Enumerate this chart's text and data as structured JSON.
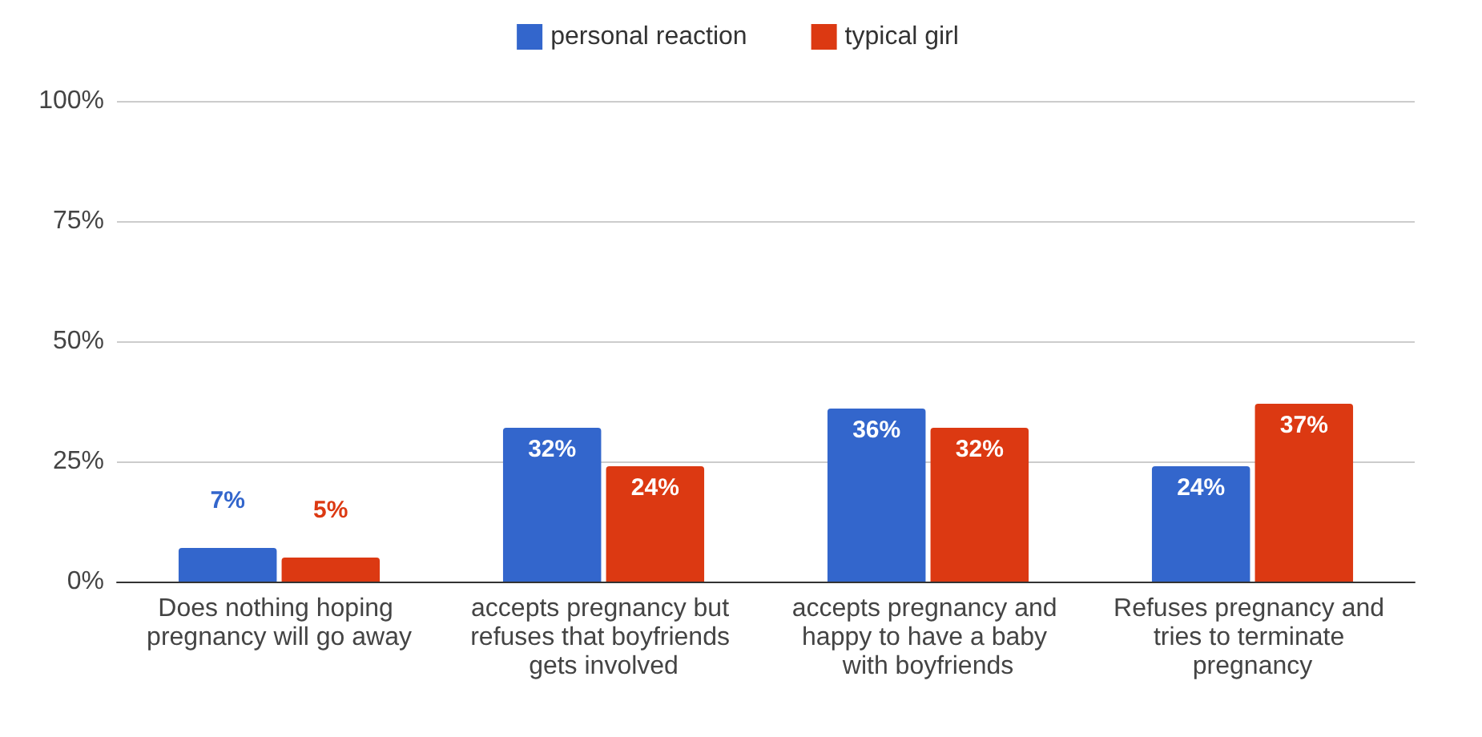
{
  "chart_data": {
    "type": "bar",
    "categories": [
      "Does nothing hoping pregnancy will go away",
      "accepts pregnancy but refuses that boyfriends gets involved",
      "accepts pregnancy and happy to have a baby with boyfriends",
      "Refuses pregnancy and tries to terminate pregnancy"
    ],
    "series": [
      {
        "name": "personal reaction",
        "color": "#3366cc",
        "values": [
          7,
          32,
          36,
          24
        ],
        "value_labels": [
          "7%",
          "32%",
          "36%",
          "24%"
        ]
      },
      {
        "name": "typical girl",
        "color": "#dc3912",
        "values": [
          5,
          24,
          32,
          37
        ],
        "value_labels": [
          "5%",
          "24%",
          "32%",
          "37%"
        ]
      }
    ],
    "ylim": [
      0,
      100
    ],
    "yticks": [
      {
        "value": 0,
        "label": "0%"
      },
      {
        "value": 25,
        "label": "25%"
      },
      {
        "value": 50,
        "label": "50%"
      },
      {
        "value": 75,
        "label": "75%"
      },
      {
        "value": 100,
        "label": "100%"
      }
    ],
    "grid": "y",
    "legend": "top"
  }
}
